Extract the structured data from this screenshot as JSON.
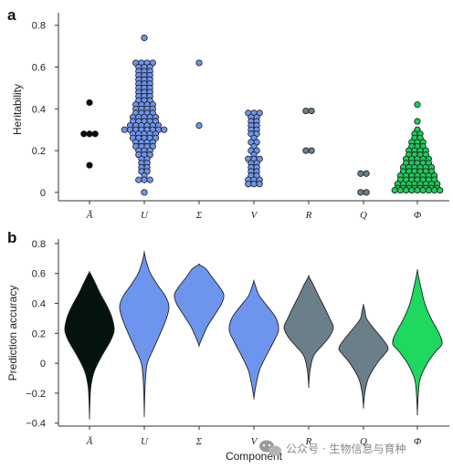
{
  "chart_data": [
    {
      "panel": "a",
      "type": "scatter",
      "ylabel": "Heritability",
      "xlabel": "",
      "ylim": [
        -0.04,
        0.86
      ],
      "yticks": [
        0,
        0.2,
        0.4,
        0.6,
        0.8
      ],
      "categories": [
        "Ă",
        "U",
        "Σ",
        "V",
        "R",
        "Q",
        "Φ"
      ],
      "colors": [
        "#0b0b0b",
        "#6e95ee",
        "#6e95ee",
        "#6e95ee",
        "#6b7f8a",
        "#6b7f8a",
        "#1fc95a"
      ],
      "series": [
        {
          "category": "Ă",
          "values": [
            0.43,
            0.28,
            0.28,
            0.28,
            0.13
          ]
        },
        {
          "category": "U",
          "values": [
            0.74,
            0.62,
            0.62,
            0.62,
            0.62,
            0.6,
            0.6,
            0.6,
            0.58,
            0.58,
            0.58,
            0.56,
            0.56,
            0.56,
            0.54,
            0.54,
            0.54,
            0.52,
            0.52,
            0.52,
            0.5,
            0.5,
            0.5,
            0.48,
            0.48,
            0.48,
            0.46,
            0.46,
            0.46,
            0.44,
            0.44,
            0.44,
            0.42,
            0.42,
            0.42,
            0.42,
            0.4,
            0.4,
            0.4,
            0.4,
            0.38,
            0.38,
            0.38,
            0.38,
            0.36,
            0.36,
            0.36,
            0.36,
            0.36,
            0.34,
            0.34,
            0.34,
            0.34,
            0.34,
            0.32,
            0.32,
            0.32,
            0.32,
            0.32,
            0.32,
            0.3,
            0.3,
            0.3,
            0.3,
            0.3,
            0.3,
            0.3,
            0.3,
            0.28,
            0.28,
            0.28,
            0.28,
            0.28,
            0.26,
            0.26,
            0.26,
            0.26,
            0.26,
            0.24,
            0.24,
            0.24,
            0.24,
            0.22,
            0.22,
            0.22,
            0.22,
            0.2,
            0.2,
            0.2,
            0.18,
            0.18,
            0.18,
            0.16,
            0.16,
            0.14,
            0.14,
            0.12,
            0.12,
            0.1,
            0.1,
            0.08,
            0.06,
            0.06,
            0.06,
            0.0
          ]
        },
        {
          "category": "Σ",
          "values": [
            0.62,
            0.32
          ]
        },
        {
          "category": "V",
          "values": [
            0.38,
            0.38,
            0.38,
            0.36,
            0.36,
            0.34,
            0.34,
            0.32,
            0.32,
            0.3,
            0.3,
            0.28,
            0.28,
            0.26,
            0.24,
            0.24,
            0.22,
            0.2,
            0.2,
            0.18,
            0.16,
            0.16,
            0.16,
            0.14,
            0.14,
            0.12,
            0.12,
            0.1,
            0.1,
            0.08,
            0.08,
            0.06,
            0.06,
            0.06,
            0.04,
            0.04,
            0.04
          ]
        },
        {
          "category": "R",
          "values": [
            0.39,
            0.39,
            0.2,
            0.2
          ]
        },
        {
          "category": "Q",
          "values": [
            0.09,
            0.09,
            0.0,
            0.0
          ]
        },
        {
          "category": "Φ",
          "values": [
            0.42,
            0.34,
            0.3,
            0.28,
            0.28,
            0.26,
            0.26,
            0.24,
            0.24,
            0.24,
            0.22,
            0.22,
            0.22,
            0.2,
            0.2,
            0.2,
            0.2,
            0.18,
            0.18,
            0.18,
            0.18,
            0.16,
            0.16,
            0.16,
            0.16,
            0.16,
            0.14,
            0.14,
            0.14,
            0.14,
            0.14,
            0.12,
            0.12,
            0.12,
            0.12,
            0.12,
            0.12,
            0.1,
            0.1,
            0.1,
            0.1,
            0.1,
            0.1,
            0.08,
            0.08,
            0.08,
            0.08,
            0.08,
            0.08,
            0.08,
            0.06,
            0.06,
            0.06,
            0.06,
            0.06,
            0.06,
            0.06,
            0.04,
            0.04,
            0.04,
            0.04,
            0.04,
            0.04,
            0.04,
            0.04,
            0.02,
            0.02,
            0.02,
            0.02,
            0.02,
            0.02,
            0.02,
            0.02,
            0.01,
            0.01,
            0.01,
            0.01,
            0.01,
            0.01,
            0.01,
            0.01,
            0.01
          ]
        }
      ]
    },
    {
      "panel": "b",
      "type": "violin",
      "ylabel": "Prediction accuracy",
      "xlabel": "Component",
      "ylim": [
        -0.42,
        0.83
      ],
      "yticks": [
        -0.4,
        -0.2,
        0,
        0.2,
        0.4,
        0.6,
        0.8
      ],
      "categories": [
        "Ă",
        "U",
        "Σ",
        "V",
        "R",
        "Q",
        "Φ"
      ],
      "colors": [
        "#05130d",
        "#6e95ee",
        "#6e95ee",
        "#6e95ee",
        "#6b7f8a",
        "#6b7f8a",
        "#1ed860"
      ],
      "series": [
        {
          "category": "Ă",
          "min": -0.36,
          "max": 0.61,
          "profile": [
            [
              -0.36,
              0
            ],
            [
              -0.25,
              0.02
            ],
            [
              -0.15,
              0.06
            ],
            [
              -0.05,
              0.2
            ],
            [
              0.05,
              0.5
            ],
            [
              0.15,
              0.85
            ],
            [
              0.22,
              1.0
            ],
            [
              0.3,
              0.92
            ],
            [
              0.38,
              0.72
            ],
            [
              0.46,
              0.45
            ],
            [
              0.53,
              0.25
            ],
            [
              0.58,
              0.1
            ],
            [
              0.61,
              0
            ]
          ]
        },
        {
          "category": "U",
          "min": -0.34,
          "max": 0.74,
          "profile": [
            [
              -0.34,
              0
            ],
            [
              -0.2,
              0.02
            ],
            [
              -0.1,
              0.05
            ],
            [
              0.0,
              0.12
            ],
            [
              0.1,
              0.38
            ],
            [
              0.2,
              0.65
            ],
            [
              0.3,
              0.9
            ],
            [
              0.38,
              1.0
            ],
            [
              0.45,
              0.85
            ],
            [
              0.52,
              0.55
            ],
            [
              0.6,
              0.25
            ],
            [
              0.68,
              0.08
            ],
            [
              0.74,
              0
            ]
          ]
        },
        {
          "category": "Σ",
          "min": 0.12,
          "max": 0.66,
          "profile": [
            [
              0.12,
              0
            ],
            [
              0.18,
              0.15
            ],
            [
              0.25,
              0.35
            ],
            [
              0.32,
              0.62
            ],
            [
              0.4,
              0.92
            ],
            [
              0.46,
              1.0
            ],
            [
              0.52,
              0.78
            ],
            [
              0.58,
              0.5
            ],
            [
              0.63,
              0.28
            ],
            [
              0.66,
              0
            ]
          ]
        },
        {
          "category": "V",
          "min": -0.23,
          "max": 0.55,
          "profile": [
            [
              -0.23,
              0
            ],
            [
              -0.15,
              0.08
            ],
            [
              -0.05,
              0.22
            ],
            [
              0.05,
              0.5
            ],
            [
              0.15,
              0.82
            ],
            [
              0.22,
              1.0
            ],
            [
              0.3,
              0.9
            ],
            [
              0.38,
              0.55
            ],
            [
              0.45,
              0.22
            ],
            [
              0.5,
              0.1
            ],
            [
              0.55,
              0
            ]
          ]
        },
        {
          "category": "R",
          "min": -0.15,
          "max": 0.58,
          "profile": [
            [
              -0.15,
              0
            ],
            [
              -0.05,
              0.05
            ],
            [
              0.05,
              0.2
            ],
            [
              0.12,
              0.55
            ],
            [
              0.18,
              0.85
            ],
            [
              0.24,
              1.0
            ],
            [
              0.3,
              0.85
            ],
            [
              0.38,
              0.62
            ],
            [
              0.45,
              0.4
            ],
            [
              0.52,
              0.2
            ],
            [
              0.58,
              0
            ]
          ]
        },
        {
          "category": "Q",
          "min": -0.29,
          "max": 0.39,
          "profile": [
            [
              -0.29,
              0
            ],
            [
              -0.2,
              0.05
            ],
            [
              -0.1,
              0.2
            ],
            [
              0.0,
              0.55
            ],
            [
              0.06,
              0.85
            ],
            [
              0.1,
              1.0
            ],
            [
              0.16,
              0.78
            ],
            [
              0.24,
              0.38
            ],
            [
              0.3,
              0.12
            ],
            [
              0.35,
              0.06
            ],
            [
              0.39,
              0
            ]
          ]
        },
        {
          "category": "Φ",
          "min": -0.33,
          "max": 0.62,
          "profile": [
            [
              -0.33,
              0
            ],
            [
              -0.2,
              0.04
            ],
            [
              -0.1,
              0.12
            ],
            [
              0.0,
              0.4
            ],
            [
              0.08,
              0.75
            ],
            [
              0.13,
              1.0
            ],
            [
              0.2,
              0.88
            ],
            [
              0.3,
              0.55
            ],
            [
              0.4,
              0.3
            ],
            [
              0.5,
              0.15
            ],
            [
              0.57,
              0.06
            ],
            [
              0.62,
              0
            ]
          ]
        }
      ]
    }
  ],
  "watermark": {
    "text": "公众号 · 生物信息与育种",
    "icon": "wechat-icon"
  }
}
